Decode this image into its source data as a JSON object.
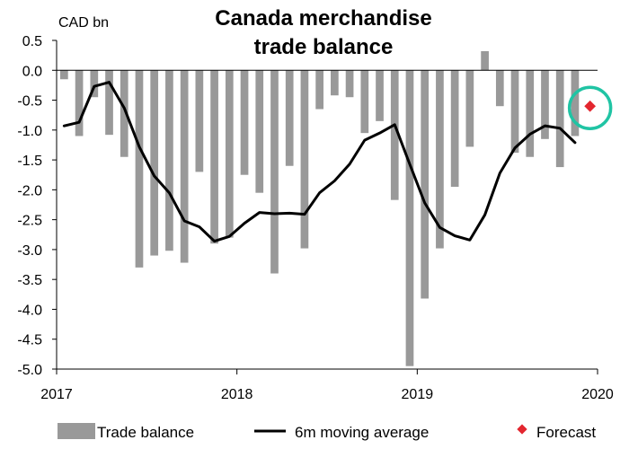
{
  "chart_data": {
    "type": "bar",
    "title_lines": [
      "Canada merchandise",
      "trade balance"
    ],
    "unit_label": "CAD bn",
    "ylim": [
      -5.0,
      0.5
    ],
    "y_ticks": [
      "0.5",
      "0.0",
      "-0.5",
      "-1.0",
      "-1.5",
      "-2.0",
      "-2.5",
      "-3.0",
      "-3.5",
      "-4.0",
      "-4.5",
      "-5.0"
    ],
    "y_tick_values": [
      0.5,
      0.0,
      -0.5,
      -1.0,
      -1.5,
      -2.0,
      -2.5,
      -3.0,
      -3.5,
      -4.0,
      -4.5,
      -5.0
    ],
    "x_ticks": [
      "2017",
      "2018",
      "2019",
      "2020"
    ],
    "x_tick_months": [
      0,
      12,
      24,
      36
    ],
    "months_span": 36,
    "series": [
      {
        "name": "Trade balance",
        "type": "bar",
        "color": "#999999",
        "start_month": 0,
        "values": [
          -0.15,
          -1.1,
          -0.45,
          -1.08,
          -1.45,
          -3.3,
          -3.1,
          -3.02,
          -3.22,
          -1.7,
          -2.9,
          -2.8,
          -1.75,
          -2.05,
          -3.4,
          -1.6,
          -2.98,
          -0.65,
          -0.42,
          -0.45,
          -1.05,
          -0.85,
          -2.17,
          -4.95,
          -3.82,
          -2.98,
          -1.95,
          -1.28,
          0.32,
          -0.6,
          -1.38,
          -1.45,
          -1.15,
          -1.62,
          -1.1
        ]
      },
      {
        "name": "6m moving average",
        "type": "line",
        "color": "#000000",
        "start_month": 0,
        "values": [
          -0.93,
          -0.87,
          -0.27,
          -0.2,
          -0.63,
          -1.28,
          -1.77,
          -2.05,
          -2.52,
          -2.62,
          -2.86,
          -2.78,
          -2.56,
          -2.38,
          -2.4,
          -2.39,
          -2.41,
          -2.05,
          -1.85,
          -1.57,
          -1.17,
          -1.05,
          -0.91,
          -1.57,
          -2.22,
          -2.63,
          -2.77,
          -2.84,
          -2.42,
          -1.72,
          -1.3,
          -1.07,
          -0.93,
          -0.97,
          -1.21
        ]
      },
      {
        "name": "Forecast",
        "type": "scatter",
        "color": "#e3262f",
        "month": 35,
        "value": -0.6
      }
    ],
    "highlight": {
      "type": "circle",
      "color": "#20c4a4",
      "month": 35,
      "value": -0.6
    },
    "legend": {
      "position": "bottom",
      "entries": [
        "Trade balance",
        "6m moving average",
        "Forecast"
      ]
    },
    "grid": false
  }
}
